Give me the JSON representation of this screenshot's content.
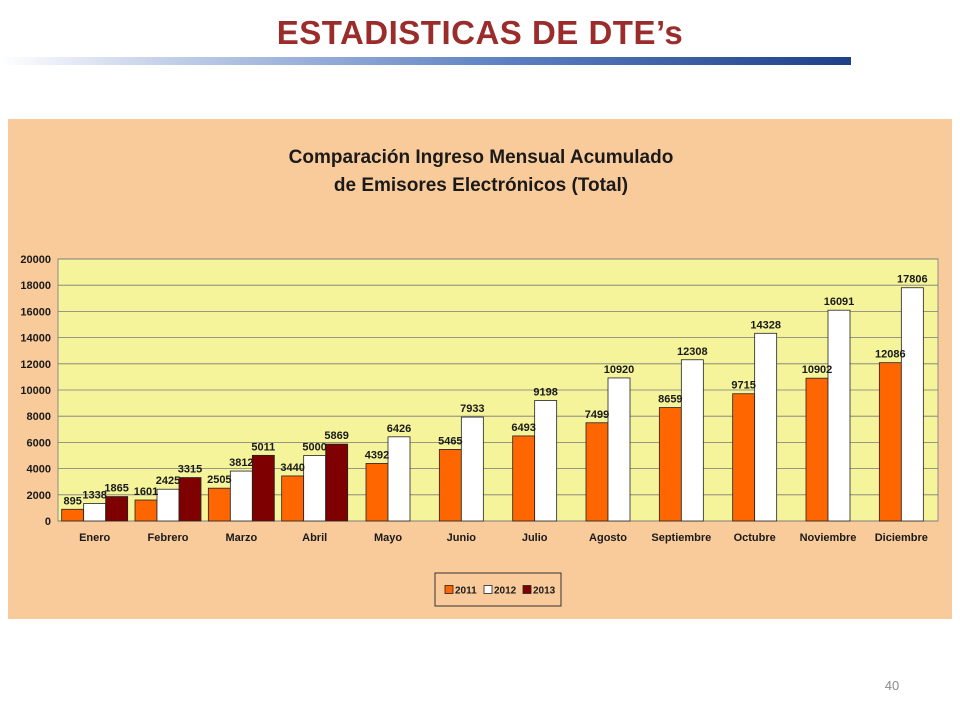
{
  "slide": {
    "title": "ESTADISTICAS DE DTE’s",
    "page_number": "40"
  },
  "colors": {
    "title": "#9b2c2c",
    "panel_background": "#facb9a",
    "plot_background": "#f5f49a",
    "series_2011": "#ff6600",
    "series_2012": "#ffffff",
    "series_2013": "#7f0000"
  },
  "chart_data": {
    "type": "bar",
    "title_line1": "Comparación Ingreso Mensual Acumulado",
    "title_line2": "de Emisores Electrónicos (Total)",
    "categories": [
      "Enero",
      "Febrero",
      "Marzo",
      "Abril",
      "Mayo",
      "Junio",
      "Julio",
      "Agosto",
      "Septiembre",
      "Octubre",
      "Noviembre",
      "Diciembre"
    ],
    "series": [
      {
        "name": "2011",
        "color": "#ff6600",
        "values": [
          895,
          1601,
          2505,
          3440,
          4392,
          5465,
          6493,
          7499,
          8659,
          9715,
          10902,
          12086
        ]
      },
      {
        "name": "2012",
        "color": "#ffffff",
        "values": [
          1338,
          2425,
          3812,
          5000,
          6426,
          7933,
          9198,
          10920,
          12308,
          14328,
          16091,
          17806
        ]
      },
      {
        "name": "2013",
        "color": "#7f0000",
        "values": [
          1865,
          3315,
          5011,
          5869,
          null,
          null,
          null,
          null,
          null,
          null,
          null,
          null
        ]
      }
    ],
    "ylim": [
      0,
      20000
    ],
    "yticks": [
      0,
      2000,
      4000,
      6000,
      8000,
      10000,
      12000,
      14000,
      16000,
      18000,
      20000
    ],
    "grid": true,
    "legend_position": "bottom-center",
    "data_labels": true
  }
}
